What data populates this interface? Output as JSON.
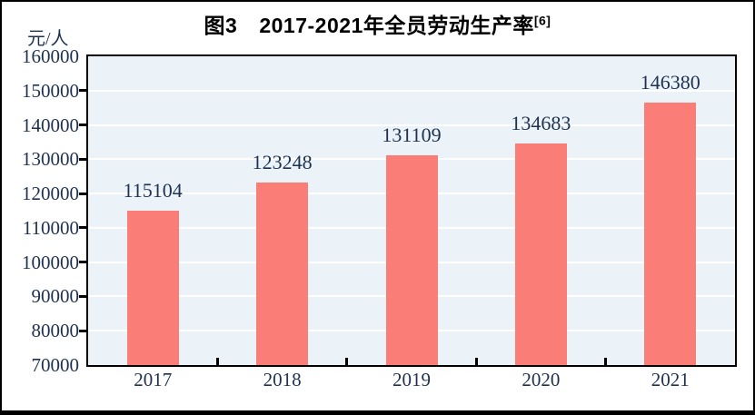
{
  "chart_data": {
    "type": "bar",
    "title_prefix": "图3",
    "title_text": "2017-2021年全员劳动生产率",
    "title_superscript": "[6]",
    "ylabel": "元/人",
    "categories": [
      "2017",
      "2018",
      "2019",
      "2020",
      "2021"
    ],
    "values": [
      115104,
      123248,
      131109,
      134683,
      146380
    ],
    "ylim": [
      70000,
      160000
    ],
    "ytick_step": 10000,
    "yticks": [
      160000,
      150000,
      140000,
      130000,
      120000,
      110000,
      100000,
      90000,
      80000,
      70000
    ],
    "grid": true,
    "legend": null,
    "colors": {
      "bar": "#fb7d78",
      "plot_bg": "#ebf3f8",
      "grid": "#ffffff",
      "text": "#1e3150",
      "title": "#000000",
      "border": "#000000"
    }
  }
}
